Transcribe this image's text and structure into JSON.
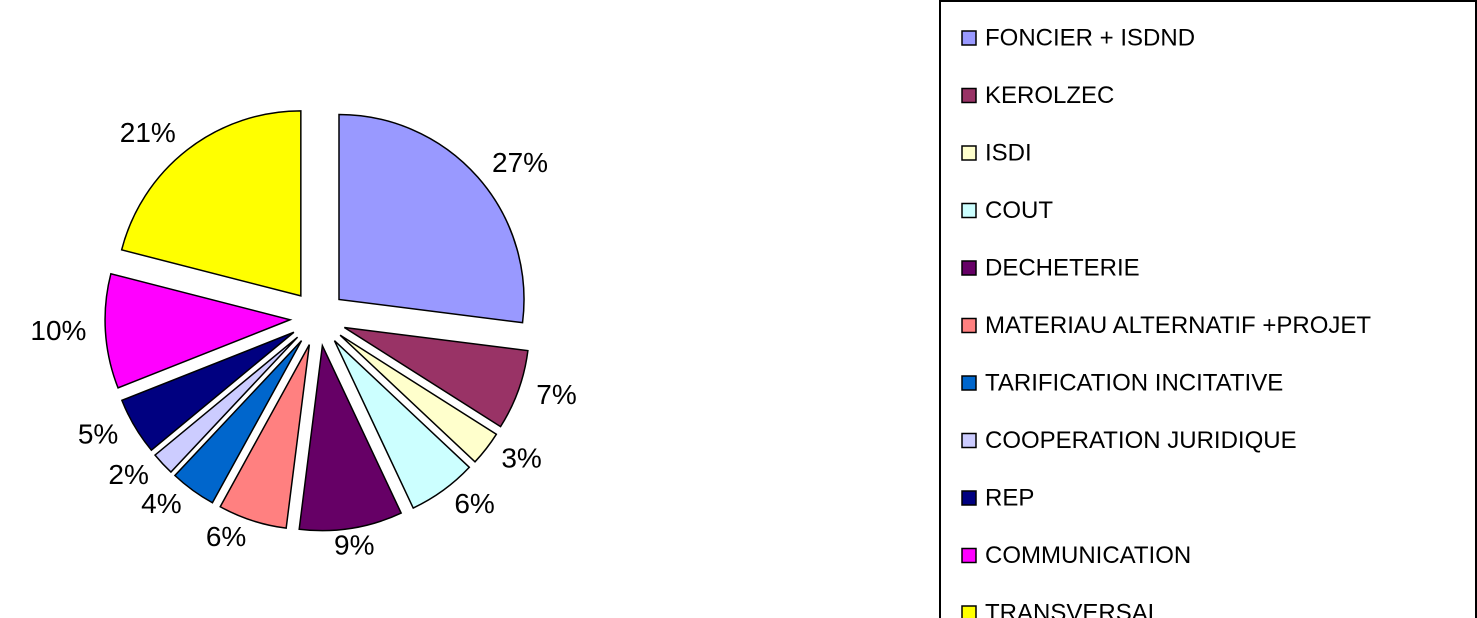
{
  "chart_data": {
    "type": "pie",
    "categories": [
      "FONCIER + ISDND",
      "KEROLZEC",
      "ISDI",
      "COUT",
      "DECHETERIE",
      "MATERIAU ALTERNATIF +PROJET",
      "TARIFICATION INCITATIVE",
      "COOPERATION JURIDIQUE",
      "REP",
      "COMMUNICATION",
      "TRANSVERSAL"
    ],
    "values": [
      27,
      7,
      3,
      6,
      9,
      6,
      4,
      2,
      5,
      10,
      21
    ],
    "value_labels": [
      "27%",
      "7%",
      "3%",
      "6%",
      "9%",
      "6%",
      "4%",
      "2%",
      "5%",
      "10%",
      "21%"
    ],
    "colors": [
      "#9999ff",
      "#993366",
      "#ffffcc",
      "#ccffff",
      "#660066",
      "#ff8080",
      "#0066cc",
      "#ccccff",
      "#000080",
      "#ff00ff",
      "#ffff00"
    ],
    "legend": "right"
  }
}
